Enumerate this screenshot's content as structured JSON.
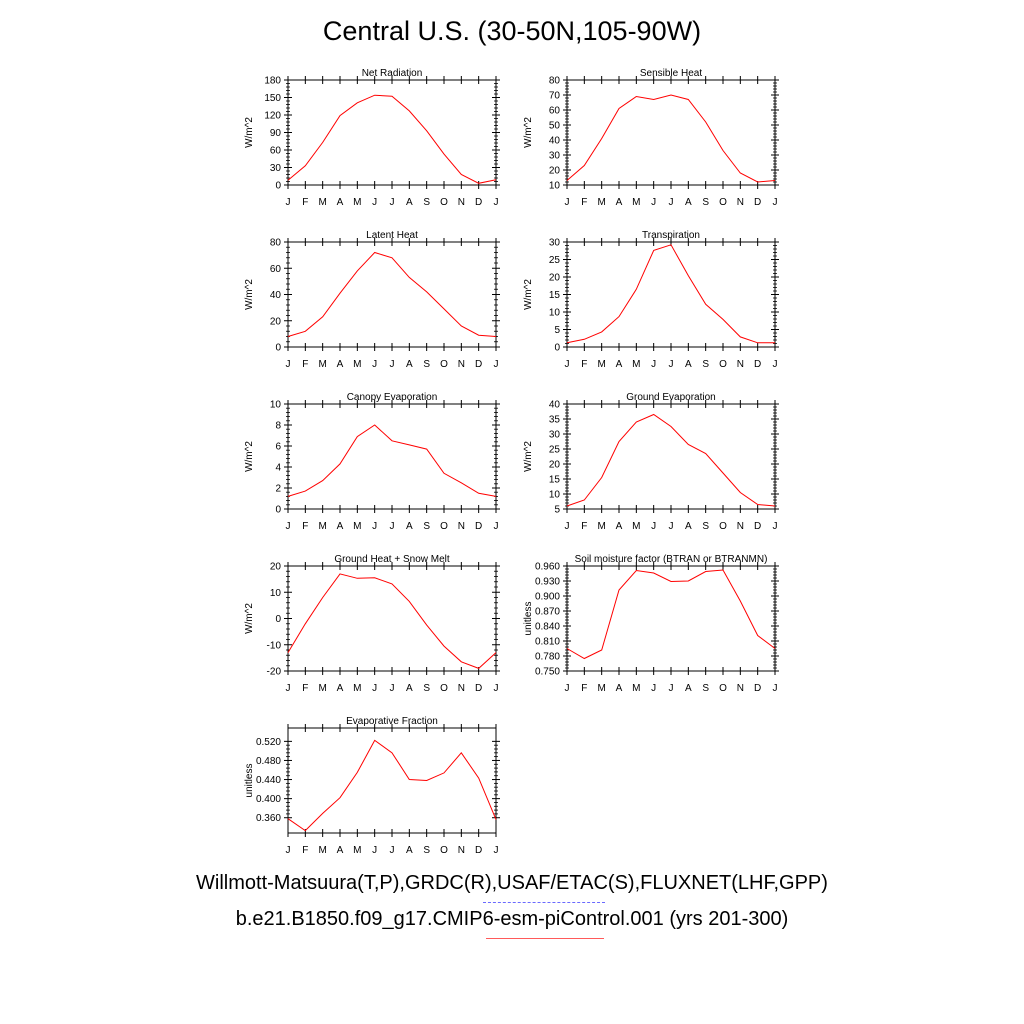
{
  "title": "Central U.S. (30-50N,105-90W)",
  "legend": {
    "observations": "Willmott-Matsuura(T,P),GRDC(R),USAF/ETAC(S),FLUXNET(LHF,GPP)",
    "model": "b.e21.B1850.f09_g17.CMIP6-esm-piControl.001 (yrs 201-300)"
  },
  "colors": {
    "model_line": "#ff0000",
    "observations_line": "#6a6aff",
    "axes": "#000000"
  },
  "chart_data": [
    {
      "type": "line",
      "title": "Net Radiation",
      "xlabel": "",
      "ylabel": "W/m^2",
      "categories": [
        "J",
        "F",
        "M",
        "A",
        "M",
        "J",
        "J",
        "A",
        "S",
        "O",
        "N",
        "D",
        "J"
      ],
      "ylim": [
        0,
        180
      ],
      "yticks": [
        0,
        30,
        60,
        90,
        120,
        150,
        180
      ],
      "ytick_decimals": 0,
      "values": [
        8,
        33,
        73,
        119,
        141,
        154,
        152,
        127,
        93,
        53,
        18,
        3,
        9
      ]
    },
    {
      "type": "line",
      "title": "Sensible Heat",
      "xlabel": "",
      "ylabel": "W/m^2",
      "categories": [
        "J",
        "F",
        "M",
        "A",
        "M",
        "J",
        "J",
        "A",
        "S",
        "O",
        "N",
        "D",
        "J"
      ],
      "ylim": [
        10,
        80
      ],
      "yticks": [
        10,
        20,
        30,
        40,
        50,
        60,
        70,
        80
      ],
      "ytick_decimals": 0,
      "values": [
        13,
        23,
        41,
        61,
        69,
        67,
        70,
        67,
        52,
        33,
        18,
        12,
        13
      ]
    },
    {
      "type": "line",
      "title": "Latent Heat",
      "xlabel": "",
      "ylabel": "W/m^2",
      "categories": [
        "J",
        "F",
        "M",
        "A",
        "M",
        "J",
        "J",
        "A",
        "S",
        "O",
        "N",
        "D",
        "J"
      ],
      "ylim": [
        0,
        80
      ],
      "yticks": [
        0,
        20,
        40,
        60,
        80
      ],
      "ytick_decimals": 0,
      "values": [
        8,
        12,
        23,
        41,
        58,
        72,
        68,
        53,
        42,
        29,
        16,
        9,
        8
      ]
    },
    {
      "type": "line",
      "title": "Transpiration",
      "xlabel": "",
      "ylabel": "W/m^2",
      "categories": [
        "J",
        "F",
        "M",
        "A",
        "M",
        "J",
        "J",
        "A",
        "S",
        "O",
        "N",
        "D",
        "J"
      ],
      "ylim": [
        0,
        30
      ],
      "yticks": [
        0,
        5,
        10,
        15,
        20,
        25,
        30
      ],
      "ytick_decimals": 0,
      "values": [
        1.2,
        2.2,
        4.3,
        8.7,
        16.5,
        27.6,
        29.2,
        20.4,
        12.2,
        7.9,
        2.9,
        1.2,
        1.2
      ]
    },
    {
      "type": "line",
      "title": "Canopy Evaporation",
      "xlabel": "",
      "ylabel": "W/m^2",
      "categories": [
        "J",
        "F",
        "M",
        "A",
        "M",
        "J",
        "J",
        "A",
        "S",
        "O",
        "N",
        "D",
        "J"
      ],
      "ylim": [
        0,
        10
      ],
      "yticks": [
        0,
        2,
        4,
        6,
        8,
        10
      ],
      "ytick_decimals": 0,
      "values": [
        1.2,
        1.7,
        2.7,
        4.3,
        6.9,
        8.0,
        6.5,
        6.1,
        5.7,
        3.4,
        2.5,
        1.5,
        1.2
      ]
    },
    {
      "type": "line",
      "title": "Ground Evaporation",
      "xlabel": "",
      "ylabel": "W/m^2",
      "categories": [
        "J",
        "F",
        "M",
        "A",
        "M",
        "J",
        "J",
        "A",
        "S",
        "O",
        "N",
        "D",
        "J"
      ],
      "ylim": [
        5,
        40
      ],
      "yticks": [
        5,
        10,
        15,
        20,
        25,
        30,
        35,
        40
      ],
      "ytick_decimals": 0,
      "values": [
        6,
        8,
        15.5,
        27.5,
        34,
        36.5,
        32.5,
        26.5,
        23.5,
        17,
        10.5,
        6.5,
        6
      ]
    },
    {
      "type": "line",
      "title": "Ground Heat + Snow Melt",
      "xlabel": "",
      "ylabel": "W/m^2",
      "categories": [
        "J",
        "F",
        "M",
        "A",
        "M",
        "J",
        "J",
        "A",
        "S",
        "O",
        "N",
        "D",
        "J"
      ],
      "ylim": [
        -20,
        20
      ],
      "yticks": [
        -20,
        -10,
        0,
        10,
        20
      ],
      "ytick_decimals": 0,
      "values": [
        -13,
        -2,
        8,
        17,
        15.3,
        15.5,
        13.2,
        6.5,
        -2.5,
        -10.5,
        -16.5,
        -19,
        -13
      ]
    },
    {
      "type": "line",
      "title": "Soil moisture factor (BTRAN or BTRANMN)",
      "xlabel": "",
      "ylabel": "unitless",
      "categories": [
        "J",
        "F",
        "M",
        "A",
        "M",
        "J",
        "J",
        "A",
        "S",
        "O",
        "N",
        "D",
        "J"
      ],
      "ylim": [
        0.75,
        0.96
      ],
      "yticks": [
        0.75,
        0.78,
        0.81,
        0.84,
        0.87,
        0.9,
        0.93,
        0.96
      ],
      "ytick_decimals": 3,
      "values": [
        0.795,
        0.775,
        0.792,
        0.912,
        0.951,
        0.946,
        0.929,
        0.93,
        0.949,
        0.952,
        0.89,
        0.821,
        0.795
      ]
    },
    {
      "type": "line",
      "title": "Evaporative Fraction",
      "xlabel": "",
      "ylabel": "unitless",
      "categories": [
        "J",
        "F",
        "M",
        "A",
        "M",
        "J",
        "J",
        "A",
        "S",
        "O",
        "N",
        "D",
        "J"
      ],
      "ylim": [
        0.328,
        0.548
      ],
      "yticks": [
        0.36,
        0.4,
        0.44,
        0.48,
        0.52
      ],
      "ytick_decimals": 3,
      "values": [
        0.358,
        0.333,
        0.369,
        0.402,
        0.455,
        0.522,
        0.496,
        0.44,
        0.438,
        0.454,
        0.496,
        0.443,
        0.356
      ]
    }
  ]
}
